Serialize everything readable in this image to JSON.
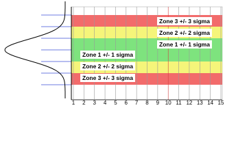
{
  "x_axis": {
    "ticks": [
      1,
      2,
      3,
      4,
      5,
      6,
      7,
      8,
      9,
      10,
      11,
      12,
      13,
      14,
      15
    ]
  },
  "zones": [
    "Zone 3 +/- 3 sigma",
    "Zone 2 +/- 2 sigma",
    "Zone 1 +/- 1 sigma",
    "Zone 1 +/- 1 sigma",
    "Zone 2 +/- 2 sigma",
    "Zone 3 +/- 3 sigma"
  ]
}
